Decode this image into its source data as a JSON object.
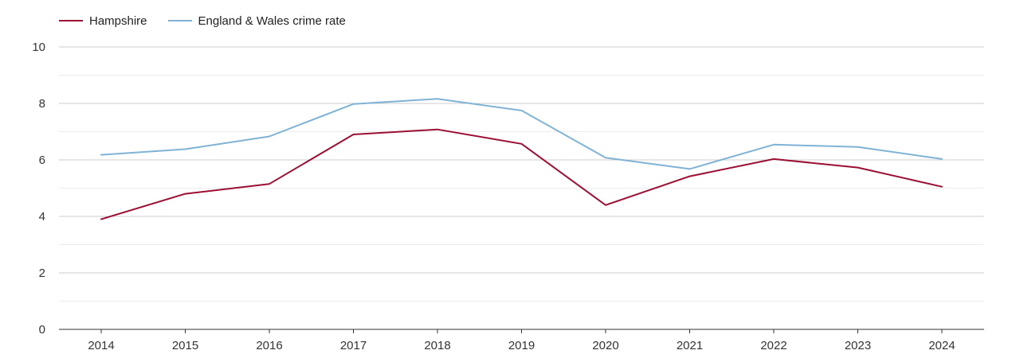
{
  "chart_data": {
    "type": "line",
    "title": "",
    "xlabel": "",
    "ylabel": "",
    "categories": [
      "2014",
      "2015",
      "2016",
      "2017",
      "2018",
      "2019",
      "2020",
      "2021",
      "2022",
      "2023",
      "2024"
    ],
    "ylim": [
      0,
      10
    ],
    "yticks": [
      0,
      2,
      4,
      6,
      8,
      10
    ],
    "grid": true,
    "legend_position": "top-left",
    "series": [
      {
        "name": "Hampshire",
        "color": "#9b0f32",
        "values": [
          3.9,
          4.8,
          5.15,
          6.9,
          7.08,
          6.57,
          4.4,
          5.42,
          6.03,
          5.73,
          5.05
        ]
      },
      {
        "name": "England & Wales crime rate",
        "color": "#7fb3d5",
        "values": [
          6.18,
          6.38,
          6.83,
          7.98,
          8.16,
          7.75,
          6.08,
          5.68,
          6.54,
          6.46,
          6.03
        ]
      }
    ]
  }
}
